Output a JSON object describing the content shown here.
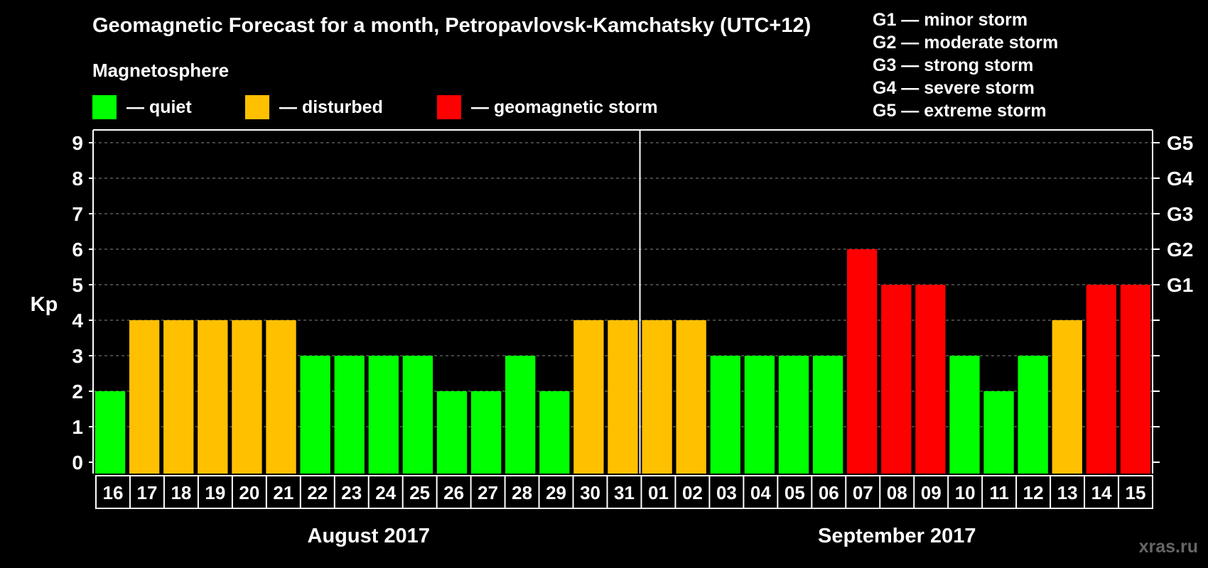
{
  "chart_data": {
    "type": "bar",
    "title": "Geomagnetic Forecast for a month, Petropavlovsk-Kamchatsky (UTC+12)",
    "ylabel": "Kp",
    "ylim": [
      0,
      9
    ],
    "yticks": [
      "0",
      "1",
      "2",
      "3",
      "4",
      "5",
      "6",
      "7",
      "8",
      "9"
    ],
    "right_axis_labels": [
      {
        "kp": 5,
        "label": "G1"
      },
      {
        "kp": 6,
        "label": "G2"
      },
      {
        "kp": 7,
        "label": "G3"
      },
      {
        "kp": 8,
        "label": "G4"
      },
      {
        "kp": 9,
        "label": "G5"
      }
    ],
    "categories": [
      "16",
      "17",
      "18",
      "19",
      "20",
      "21",
      "22",
      "23",
      "24",
      "25",
      "26",
      "27",
      "28",
      "29",
      "30",
      "31",
      "01",
      "02",
      "03",
      "04",
      "05",
      "06",
      "07",
      "08",
      "09",
      "10",
      "11",
      "12",
      "13",
      "14",
      "15"
    ],
    "values": [
      2,
      4,
      4,
      4,
      4,
      4,
      3,
      3,
      3,
      3,
      2,
      2,
      3,
      2,
      4,
      4,
      4,
      4,
      3,
      3,
      3,
      3,
      6,
      5,
      5,
      3,
      2,
      3,
      4,
      5,
      5
    ],
    "months": [
      {
        "label": "August 2017",
        "start_index": 0,
        "count": 16
      },
      {
        "label": "September 2017",
        "start_index": 16,
        "count": 15
      }
    ],
    "grid": true,
    "color_rule": "quiet: Kp<=3, disturbed: Kp=4, geomagnetic storm: Kp>=5"
  },
  "header": {
    "title": "Geomagnetic Forecast for a month, Petropavlovsk-Kamchatsky (UTC+12)",
    "magnetosphere_label": "Magnetosphere"
  },
  "legend": [
    {
      "label": "— quiet",
      "color": "#00ff00"
    },
    {
      "label": "— disturbed",
      "color": "#ffc000"
    },
    {
      "label": "— geomagnetic storm",
      "color": "#ff0000"
    }
  ],
  "storm_scale": [
    "G1 — minor storm",
    "G2 — moderate storm",
    "G3 — strong storm",
    "G4 — severe storm",
    "G5 — extreme storm"
  ],
  "colors": {
    "quiet": "#00ff00",
    "disturbed": "#ffc000",
    "storm": "#ff0000",
    "background": "#000000"
  },
  "watermark": "xras.ru"
}
